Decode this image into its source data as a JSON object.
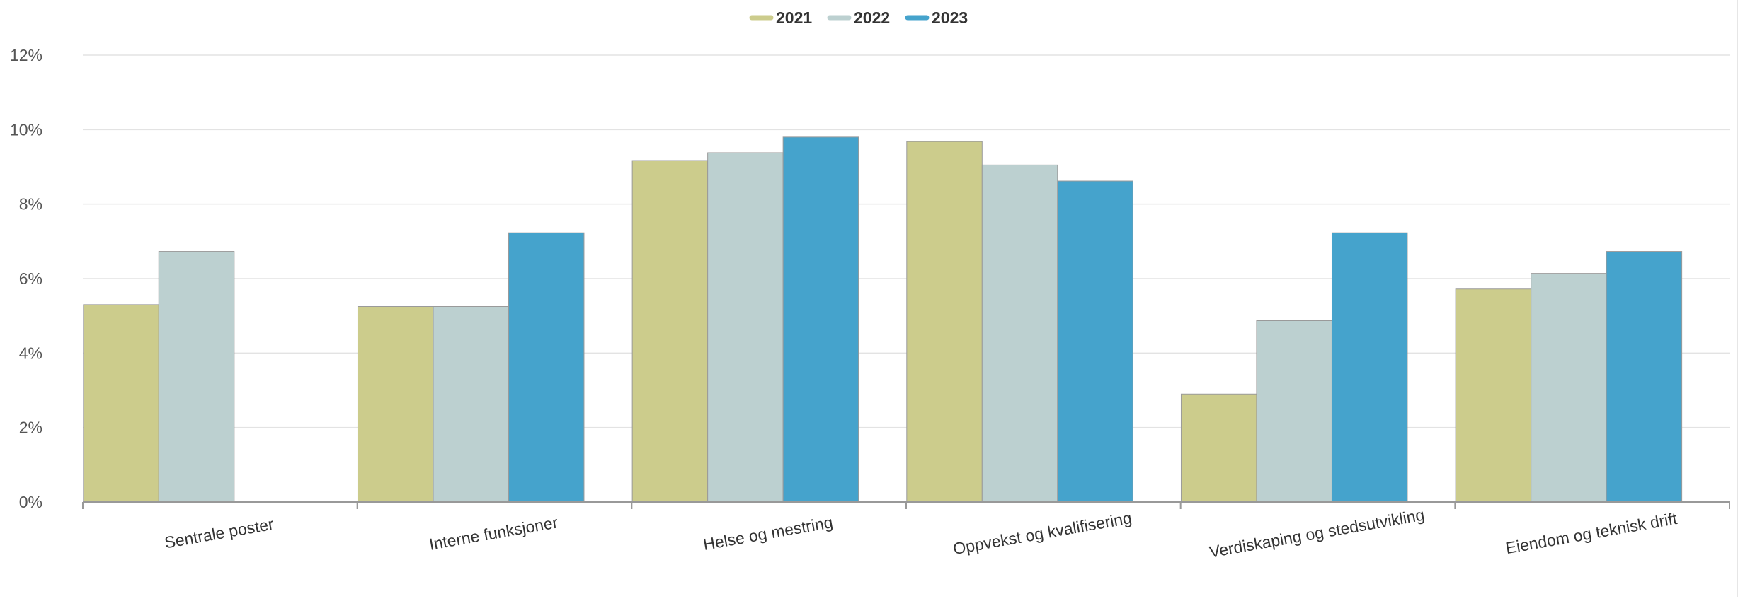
{
  "chart_data": {
    "type": "bar",
    "title": "",
    "xlabel": "",
    "ylabel": "",
    "categories": [
      "Sentrale poster",
      "Interne funksjoner",
      "Helse og mestring",
      "Oppvekst og kvalifisering",
      "Verdiskaping og stedsutvikling",
      "Eiendom og teknisk drift"
    ],
    "series": [
      {
        "name": "2021",
        "color": "#CCCC8C",
        "values": [
          5.3,
          5.25,
          9.17,
          9.68,
          2.9,
          5.72
        ]
      },
      {
        "name": "2022",
        "color": "#BCD0D0",
        "values": [
          6.73,
          5.25,
          9.38,
          9.05,
          4.87,
          6.14
        ]
      },
      {
        "name": "2023",
        "color": "#45A3CC",
        "values": [
          null,
          7.23,
          9.8,
          8.62,
          7.23,
          6.73
        ]
      }
    ],
    "ylim": [
      0,
      12
    ],
    "yticks": [
      0,
      2,
      4,
      6,
      8,
      10,
      12
    ],
    "ytick_labels": [
      "0%",
      "2%",
      "4%",
      "6%",
      "8%",
      "10%",
      "12%"
    ],
    "grid": true,
    "legend": "top-center"
  }
}
